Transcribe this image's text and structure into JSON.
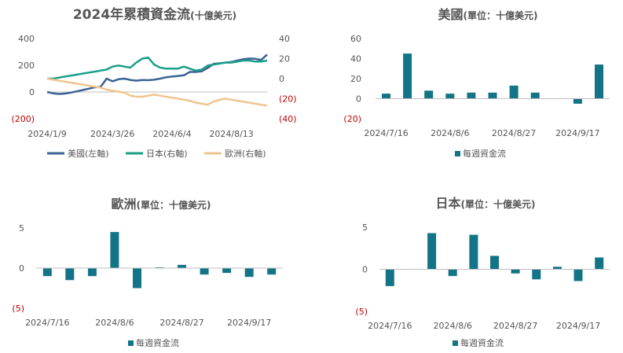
{
  "colors": {
    "us": "#3a6294",
    "japan": "#1a9e8a",
    "europe": "#efc58e",
    "bar": "#127486",
    "axis_text": "#555555",
    "negative": "#c00000",
    "title": "#555555",
    "grid": "#bfbfbf"
  },
  "chart_data": [
    {
      "id": "cumulative",
      "type": "line",
      "title": "2024年累積資金流",
      "title_unit": "(十億美元)",
      "left_ticks": [
        "400",
        "200",
        "0",
        "(200)"
      ],
      "right_ticks": [
        "40",
        "20",
        "0",
        "(20)",
        "(40)"
      ],
      "ylim_left": [
        -200,
        400
      ],
      "ylim_right": [
        -40,
        40
      ],
      "x_tick_labels": [
        "2024/1/9",
        "2024/3/26",
        "2024/6/4",
        "2024/8/13"
      ],
      "x_tick_index": [
        0,
        11,
        21,
        31
      ],
      "series": [
        {
          "name": "美國(左軸)",
          "axis": "left",
          "values": [
            0,
            -10,
            -15,
            -12,
            -5,
            5,
            15,
            25,
            35,
            38,
            100,
            80,
            95,
            100,
            90,
            85,
            90,
            88,
            92,
            100,
            110,
            115,
            120,
            125,
            150,
            150,
            155,
            180,
            210,
            215,
            220,
            225,
            235,
            245,
            250,
            248,
            240,
            280
          ]
        },
        {
          "name": "日本(右軸)",
          "axis": "right",
          "values": [
            0,
            0,
            1,
            2,
            3,
            4,
            5,
            6,
            7,
            8,
            9,
            12,
            13,
            12,
            11,
            16,
            20,
            21,
            14,
            11,
            10,
            10,
            10,
            12,
            10,
            8,
            9,
            13,
            14,
            15,
            16,
            16,
            17,
            18,
            18,
            17,
            17,
            18
          ]
        },
        {
          "name": "歐洲(右軸)",
          "axis": "right",
          "values": [
            0,
            -1,
            -2,
            -3,
            -4,
            -5,
            -6,
            -7,
            -8,
            -9,
            -11,
            -12,
            -13,
            -14,
            -17,
            -18,
            -18,
            -17,
            -16,
            -17,
            -18,
            -19,
            -20,
            -21,
            -22,
            -24,
            -25,
            -26,
            -23,
            -21,
            -20,
            -21,
            -22,
            -23,
            -24,
            -25,
            -26,
            -27
          ]
        }
      ]
    },
    {
      "id": "us",
      "type": "bar",
      "title": "美國",
      "title_unit": "(單位：十億美元)",
      "y_ticks": [
        "60",
        "40",
        "20",
        "0",
        "(20)"
      ],
      "ylim": [
        -20,
        60
      ],
      "x_tick_labels": [
        "2024/7/16",
        "2024/8/6",
        "2024/8/27",
        "2024/9/17"
      ],
      "x_tick_index": [
        0,
        3,
        6,
        9
      ],
      "values": [
        5,
        45,
        8,
        5,
        6,
        6,
        13,
        6,
        0,
        -5,
        34
      ],
      "legend": "每週資金流"
    },
    {
      "id": "europe",
      "type": "bar",
      "title": "歐洲",
      "title_unit": "(單位：十億美元)",
      "y_ticks": [
        "5",
        "0",
        "(5)"
      ],
      "ylim": [
        -5,
        5
      ],
      "x_tick_labels": [
        "2024/7/16",
        "2024/8/6",
        "2024/8/27",
        "2024/9/17"
      ],
      "x_tick_index": [
        0,
        3,
        6,
        9
      ],
      "values": [
        -1,
        -1.5,
        -1,
        4.5,
        -2.5,
        0.1,
        0.4,
        -0.8,
        -0.6,
        -1.1,
        -0.8
      ],
      "legend": "每週資金流"
    },
    {
      "id": "japan",
      "type": "bar",
      "title": "日本",
      "title_unit": "(單位：十億美元)",
      "y_ticks": [
        "5",
        "0",
        "(5)"
      ],
      "ylim": [
        -5,
        5
      ],
      "x_tick_labels": [
        "2024/7/16",
        "2024/8/6",
        "2024/8/27",
        "2024/9/17"
      ],
      "x_tick_index": [
        0,
        3,
        6,
        9
      ],
      "values": [
        -2,
        0,
        4.3,
        -0.8,
        4.1,
        1.6,
        -0.5,
        -1.2,
        0.3,
        -1.4,
        1.4
      ],
      "legend": "每週資金流"
    }
  ]
}
